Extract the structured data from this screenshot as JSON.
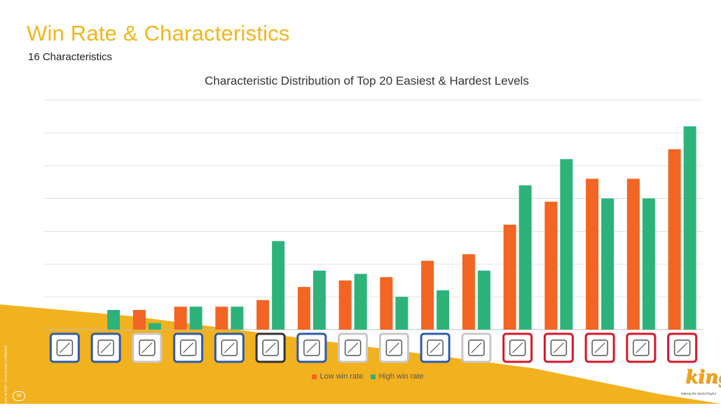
{
  "slide": {
    "title": "Win Rate & Characteristics",
    "subtitle": "16 Characteristics",
    "page_number": "56",
    "copyright": "© King.com Ltd 2020 - Commercially Confidential",
    "logo_text": "king",
    "logo_tagline": "Making the World Playful"
  },
  "chart_data": {
    "type": "bar",
    "title": "Characteristic Distribution of Top 20 Easiest & Hardest Levels",
    "xlabel": "",
    "ylabel": "",
    "ylim": [
      0,
      7
    ],
    "grid": true,
    "legend_position": "bottom",
    "categories": [
      "c1-icon",
      "c2-icon",
      "c3-icon",
      "c4-icon",
      "c5-icon",
      "c6-icon",
      "c7-icon",
      "c8-icon",
      "c9-icon",
      "c10-icon",
      "c11-icon",
      "c12-icon",
      "c13-icon",
      "c14-icon",
      "c15-icon",
      "c16-icon"
    ],
    "series": [
      {
        "name": "Low win rate",
        "color": "#F26522",
        "values": [
          0,
          0,
          0.6,
          0.7,
          0.7,
          0.9,
          1.3,
          1.5,
          1.6,
          2.1,
          2.3,
          3.2,
          3.9,
          4.6,
          4.6,
          5.5
        ]
      },
      {
        "name": "High win rate",
        "color": "#2DB37A",
        "values": [
          0,
          0.6,
          0.2,
          0.7,
          0.7,
          2.7,
          1.8,
          1.7,
          1.0,
          1.2,
          1.8,
          4.4,
          5.2,
          4.0,
          4.0,
          6.2
        ]
      }
    ],
    "icon_frames": [
      "blue",
      "blue",
      "gray",
      "blue",
      "blue",
      "black",
      "blue",
      "gray",
      "gray",
      "blue",
      "gray",
      "red",
      "red",
      "red",
      "red",
      "red"
    ]
  }
}
